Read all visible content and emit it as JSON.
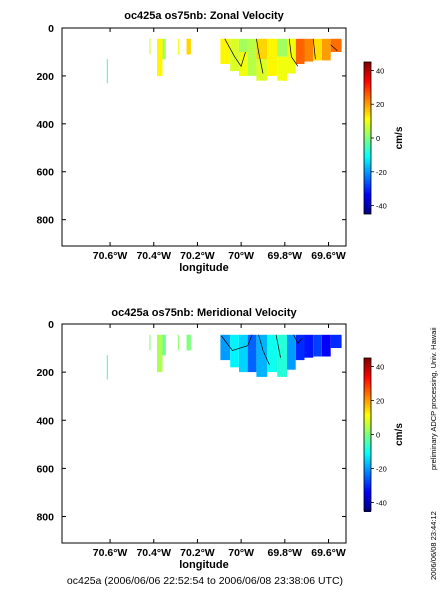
{
  "chart_data": [
    {
      "type": "heatmap",
      "title": "oc425a os75nb: Zonal Velocity",
      "xlabel": "longitude",
      "ylabel": "",
      "x_ticks": [
        {
          "value": -70.6,
          "label": "70.6°W"
        },
        {
          "value": -70.4,
          "label": "70.4°W"
        },
        {
          "value": -70.2,
          "label": "70.2°W"
        },
        {
          "value": -70.0,
          "label": "70°W"
        },
        {
          "value": -69.8,
          "label": "69.8°W"
        },
        {
          "value": -69.6,
          "label": "69.6°W"
        }
      ],
      "y_ticks": [
        0,
        200,
        400,
        600,
        800
      ],
      "xlim": [
        -70.82,
        -69.52
      ],
      "ylim": [
        910,
        0
      ],
      "y_reversed": true,
      "colorbar": {
        "label": "cm/s",
        "range": [
          -45,
          45
        ],
        "ticks": [
          40,
          20,
          0,
          -20,
          -40
        ]
      },
      "cells": [
        {
          "x0": -70.615,
          "x1": -70.61,
          "y0": 130,
          "y1": 230,
          "v": -5
        },
        {
          "x0": -70.42,
          "x1": -70.415,
          "y0": 45,
          "y1": 110,
          "v": 8
        },
        {
          "x0": -70.385,
          "x1": -70.36,
          "y0": 45,
          "y1": 200,
          "v": 12
        },
        {
          "x0": -70.36,
          "x1": -70.345,
          "y0": 45,
          "y1": 130,
          "v": 3
        },
        {
          "x0": -70.29,
          "x1": -70.285,
          "y0": 45,
          "y1": 110,
          "v": 10
        },
        {
          "x0": -70.25,
          "x1": -70.23,
          "y0": 45,
          "y1": 110,
          "v": 15
        },
        {
          "x0": -70.095,
          "x1": -70.05,
          "y0": 45,
          "y1": 150,
          "v": 12
        },
        {
          "x0": -70.05,
          "x1": -70.01,
          "y0": 45,
          "y1": 180,
          "v": 8
        },
        {
          "x0": -70.01,
          "x1": -69.97,
          "y0": 45,
          "y1": 100,
          "v": 3
        },
        {
          "x0": -70.01,
          "x1": -69.97,
          "y0": 100,
          "y1": 200,
          "v": 10
        },
        {
          "x0": -69.97,
          "x1": -69.93,
          "y0": 45,
          "y1": 200,
          "v": 5
        },
        {
          "x0": -69.93,
          "x1": -69.88,
          "y0": 45,
          "y1": 130,
          "v": 15
        },
        {
          "x0": -69.93,
          "x1": -69.88,
          "y0": 130,
          "y1": 220,
          "v": 8
        },
        {
          "x0": -69.88,
          "x1": -69.835,
          "y0": 45,
          "y1": 200,
          "v": 12
        },
        {
          "x0": -69.835,
          "x1": -69.79,
          "y0": 45,
          "y1": 120,
          "v": 3
        },
        {
          "x0": -69.835,
          "x1": -69.79,
          "y0": 120,
          "y1": 220,
          "v": 10
        },
        {
          "x0": -69.79,
          "x1": -69.75,
          "y0": 45,
          "y1": 190,
          "v": 10
        },
        {
          "x0": -69.75,
          "x1": -69.71,
          "y0": 45,
          "y1": 150,
          "v": 25
        },
        {
          "x0": -69.71,
          "x1": -69.67,
          "y0": 45,
          "y1": 140,
          "v": 22
        },
        {
          "x0": -69.67,
          "x1": -69.63,
          "y0": 45,
          "y1": 135,
          "v": 14
        },
        {
          "x0": -69.63,
          "x1": -69.59,
          "y0": 45,
          "y1": 135,
          "v": 20
        },
        {
          "x0": -69.59,
          "x1": -69.54,
          "y0": 45,
          "y1": 100,
          "v": 24
        }
      ],
      "contours": [
        {
          "points": [
            [
              -70.075,
              45
            ],
            [
              -70.03,
              120
            ],
            [
              -70.0,
              160
            ],
            [
              -69.98,
              100
            ]
          ]
        },
        {
          "points": [
            [
              -69.93,
              45
            ],
            [
              -69.92,
              100
            ],
            [
              -69.9,
              190
            ]
          ]
        },
        {
          "points": [
            [
              -69.78,
              45
            ],
            [
              -69.77,
              120
            ],
            [
              -69.74,
              160
            ]
          ]
        },
        {
          "points": [
            [
              -69.67,
              45
            ],
            [
              -69.66,
              130
            ]
          ]
        },
        {
          "points": [
            [
              -69.59,
              70
            ],
            [
              -69.56,
              95
            ]
          ]
        }
      ]
    },
    {
      "type": "heatmap",
      "title": "oc425a os75nb: Meridional Velocity",
      "xlabel": "longitude",
      "ylabel": "",
      "x_ticks": [
        {
          "value": -70.6,
          "label": "70.6°W"
        },
        {
          "value": -70.4,
          "label": "70.4°W"
        },
        {
          "value": -70.2,
          "label": "70.2°W"
        },
        {
          "value": -70.0,
          "label": "70°W"
        },
        {
          "value": -69.8,
          "label": "69.8°W"
        },
        {
          "value": -69.6,
          "label": "69.6°W"
        }
      ],
      "y_ticks": [
        0,
        200,
        400,
        600,
        800
      ],
      "xlim": [
        -70.82,
        -69.52
      ],
      "ylim": [
        910,
        0
      ],
      "y_reversed": true,
      "colorbar": {
        "label": "cm/s",
        "range": [
          -45,
          45
        ],
        "ticks": [
          40,
          20,
          0,
          -20,
          -40
        ]
      },
      "cells": [
        {
          "x0": -70.615,
          "x1": -70.61,
          "y0": 130,
          "y1": 230,
          "v": -5
        },
        {
          "x0": -70.42,
          "x1": -70.415,
          "y0": 45,
          "y1": 110,
          "v": 0
        },
        {
          "x0": -70.385,
          "x1": -70.36,
          "y0": 45,
          "y1": 200,
          "v": 4
        },
        {
          "x0": -70.36,
          "x1": -70.345,
          "y0": 45,
          "y1": 130,
          "v": -2
        },
        {
          "x0": -70.29,
          "x1": -70.285,
          "y0": 45,
          "y1": 110,
          "v": 2
        },
        {
          "x0": -70.25,
          "x1": -70.23,
          "y0": 45,
          "y1": 110,
          "v": 0
        },
        {
          "x0": -70.095,
          "x1": -70.05,
          "y0": 45,
          "y1": 150,
          "v": -20
        },
        {
          "x0": -70.05,
          "x1": -70.01,
          "y0": 45,
          "y1": 180,
          "v": -12
        },
        {
          "x0": -70.01,
          "x1": -69.97,
          "y0": 45,
          "y1": 200,
          "v": -15
        },
        {
          "x0": -69.97,
          "x1": -69.93,
          "y0": 45,
          "y1": 200,
          "v": -25
        },
        {
          "x0": -69.93,
          "x1": -69.88,
          "y0": 45,
          "y1": 220,
          "v": -18
        },
        {
          "x0": -69.88,
          "x1": -69.835,
          "y0": 45,
          "y1": 200,
          "v": -10
        },
        {
          "x0": -69.835,
          "x1": -69.79,
          "y0": 45,
          "y1": 220,
          "v": -8
        },
        {
          "x0": -69.79,
          "x1": -69.75,
          "y0": 45,
          "y1": 190,
          "v": -20
        },
        {
          "x0": -69.75,
          "x1": -69.71,
          "y0": 45,
          "y1": 150,
          "v": -30
        },
        {
          "x0": -69.71,
          "x1": -69.67,
          "y0": 45,
          "y1": 140,
          "v": -32
        },
        {
          "x0": -69.67,
          "x1": -69.63,
          "y0": 45,
          "y1": 135,
          "v": -28
        },
        {
          "x0": -69.63,
          "x1": -69.59,
          "y0": 45,
          "y1": 135,
          "v": -34
        },
        {
          "x0": -69.59,
          "x1": -69.54,
          "y0": 45,
          "y1": 100,
          "v": -30
        }
      ],
      "contours": [
        {
          "points": [
            [
              -70.09,
              50
            ],
            [
              -70.04,
              110
            ],
            [
              -69.97,
              90
            ],
            [
              -69.95,
              45
            ]
          ]
        },
        {
          "points": [
            [
              -69.92,
              45
            ],
            [
              -69.9,
              110
            ],
            [
              -69.87,
              170
            ]
          ]
        },
        {
          "points": [
            [
              -69.84,
              45
            ],
            [
              -69.82,
              140
            ]
          ]
        },
        {
          "points": [
            [
              -69.76,
              45
            ],
            [
              -69.74,
              80
            ],
            [
              -69.72,
              60
            ]
          ]
        }
      ]
    }
  ],
  "side_note_processing": "preliminary ADCP processing,   Univ. Hawaii",
  "side_note_timestamp": "2006/06/08 23:44:12",
  "footer": "oc425a (2006/06/06 22:52:54 to 2006/06/08 23:38:06 UTC)"
}
